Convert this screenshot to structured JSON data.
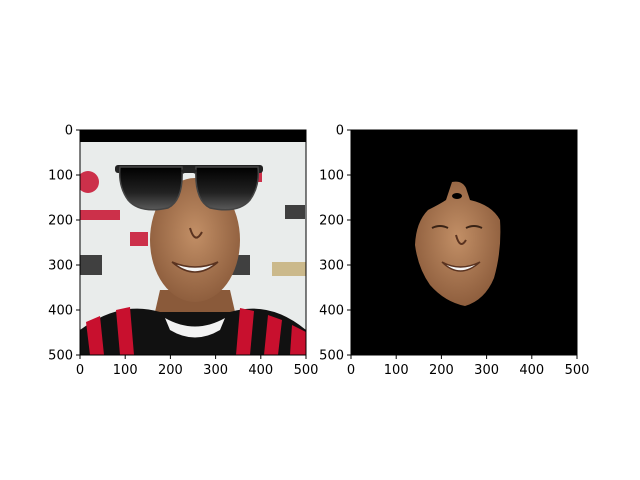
{
  "chart_data": [
    {
      "type": "image",
      "title": "",
      "xlabel": "",
      "ylabel": "",
      "xlim": [
        0,
        500
      ],
      "ylim": [
        500,
        0
      ],
      "xticks": [
        "0",
        "100",
        "200",
        "300",
        "400",
        "500"
      ],
      "yticks": [
        "0",
        "100",
        "200",
        "300",
        "400",
        "500"
      ],
      "x_tick_values": [
        0,
        100,
        200,
        300,
        400,
        500
      ],
      "y_tick_values": [
        0,
        100,
        200,
        300,
        400,
        500
      ],
      "content": "photo-with-sunglasses-overlay",
      "colors": {
        "jersey_red": "#c8102e",
        "jersey_black": "#111111",
        "background": "#e9eceb",
        "lens": "#111111"
      }
    },
    {
      "type": "image",
      "title": "",
      "xlabel": "",
      "ylabel": "",
      "xlim": [
        0,
        500
      ],
      "ylim": [
        500,
        0
      ],
      "xticks": [
        "0",
        "100",
        "200",
        "300",
        "400",
        "500"
      ],
      "yticks": [
        "0",
        "100",
        "200",
        "300",
        "400",
        "500"
      ],
      "x_tick_values": [
        0,
        100,
        200,
        300,
        400,
        500
      ],
      "y_tick_values": [
        0,
        100,
        200,
        300,
        400,
        500
      ],
      "content": "masked-face-on-black",
      "colors": {
        "background": "#000000",
        "skin": "#b9845c"
      }
    }
  ]
}
